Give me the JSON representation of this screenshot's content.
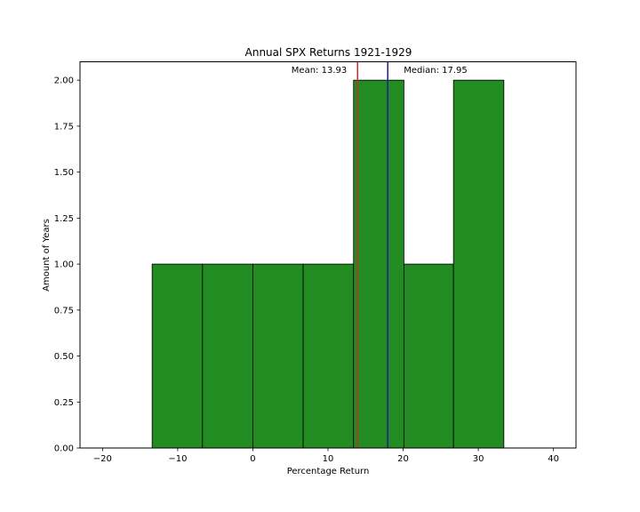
{
  "chart_data": {
    "type": "bar",
    "title": "Annual SPX Returns 1921-1929",
    "xlabel": "Percentage Return",
    "ylabel": "Amount of Years",
    "xlim": [
      -23,
      43
    ],
    "ylim": [
      0,
      2.1
    ],
    "grid": false,
    "bins": [
      {
        "start": -13.4,
        "end": -6.7,
        "count": 1
      },
      {
        "start": -6.7,
        "end": 0.0,
        "count": 1
      },
      {
        "start": 0.0,
        "end": 6.7,
        "count": 1
      },
      {
        "start": 6.7,
        "end": 13.4,
        "count": 1
      },
      {
        "start": 13.4,
        "end": 20.1,
        "count": 2
      },
      {
        "start": 20.1,
        "end": 26.7,
        "count": 1
      },
      {
        "start": 26.7,
        "end": 33.4,
        "count": 2
      }
    ],
    "x_ticks": [
      -20,
      -10,
      0,
      10,
      20,
      30,
      40
    ],
    "x_tick_labels": [
      "−20",
      "−10",
      "0",
      "10",
      "20",
      "30",
      "40"
    ],
    "y_ticks": [
      0,
      0.25,
      0.5,
      0.75,
      1.0,
      1.25,
      1.5,
      1.75,
      2.0
    ],
    "y_tick_labels": [
      "0.00",
      "0.25",
      "0.50",
      "0.75",
      "1.00",
      "1.25",
      "1.50",
      "1.75",
      "2.00"
    ],
    "lines": [
      {
        "label": "Mean: 13.93",
        "value": 13.93,
        "color": "#d62728"
      },
      {
        "label": "Median: 17.95",
        "value": 17.95,
        "color": "#1f1f8f"
      }
    ],
    "bar_color": "#228b22"
  }
}
